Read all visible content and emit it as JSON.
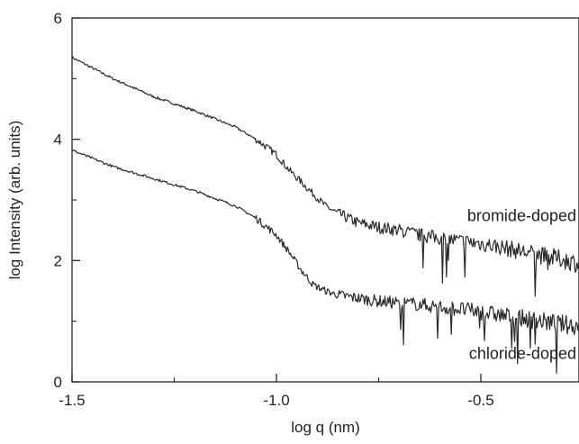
{
  "chart_data": {
    "type": "line",
    "title": "",
    "xlabel": "log q (nm)",
    "ylabel": "log Intensity (arb. units)",
    "xlim": [
      -1.5,
      -0.26
    ],
    "ylim": [
      0,
      6
    ],
    "xticks": [
      -1.5,
      -1.0,
      -0.5
    ],
    "xtick_labels": [
      "-1.5",
      "-1.0",
      "-0.5"
    ],
    "yticks": [
      0,
      2,
      4,
      6
    ],
    "ytick_labels": [
      "0",
      "2",
      "4",
      "6"
    ],
    "grid": false,
    "legend": "none",
    "line_color": "#2a2a2a",
    "series": [
      {
        "name": "bromide-doped",
        "x": [
          -1.5,
          -1.4,
          -1.3,
          -1.2,
          -1.1,
          -1.05,
          -1.0,
          -0.97,
          -0.94,
          -0.91,
          -0.88,
          -0.85,
          -0.8,
          -0.75,
          -0.7,
          -0.65,
          -0.6,
          -0.55,
          -0.5,
          -0.45,
          -0.4,
          -0.35,
          -0.3,
          -0.26
        ],
        "values": [
          5.35,
          5.0,
          4.7,
          4.47,
          4.2,
          4.0,
          3.75,
          3.5,
          3.3,
          3.1,
          2.9,
          2.78,
          2.62,
          2.55,
          2.5,
          2.42,
          2.37,
          2.32,
          2.28,
          2.22,
          2.15,
          2.08,
          2.02,
          1.95
        ]
      },
      {
        "name": "chloride-doped",
        "x": [
          -1.5,
          -1.4,
          -1.3,
          -1.2,
          -1.1,
          -1.05,
          -1.0,
          -0.97,
          -0.94,
          -0.91,
          -0.88,
          -0.85,
          -0.8,
          -0.75,
          -0.7,
          -0.65,
          -0.6,
          -0.55,
          -0.5,
          -0.45,
          -0.4,
          -0.35,
          -0.3,
          -0.26
        ],
        "values": [
          3.82,
          3.55,
          3.35,
          3.15,
          2.9,
          2.7,
          2.42,
          2.15,
          1.85,
          1.6,
          1.5,
          1.43,
          1.38,
          1.33,
          1.3,
          1.28,
          1.23,
          1.2,
          1.15,
          1.1,
          1.05,
          1.0,
          0.95,
          0.92
        ]
      }
    ]
  }
}
